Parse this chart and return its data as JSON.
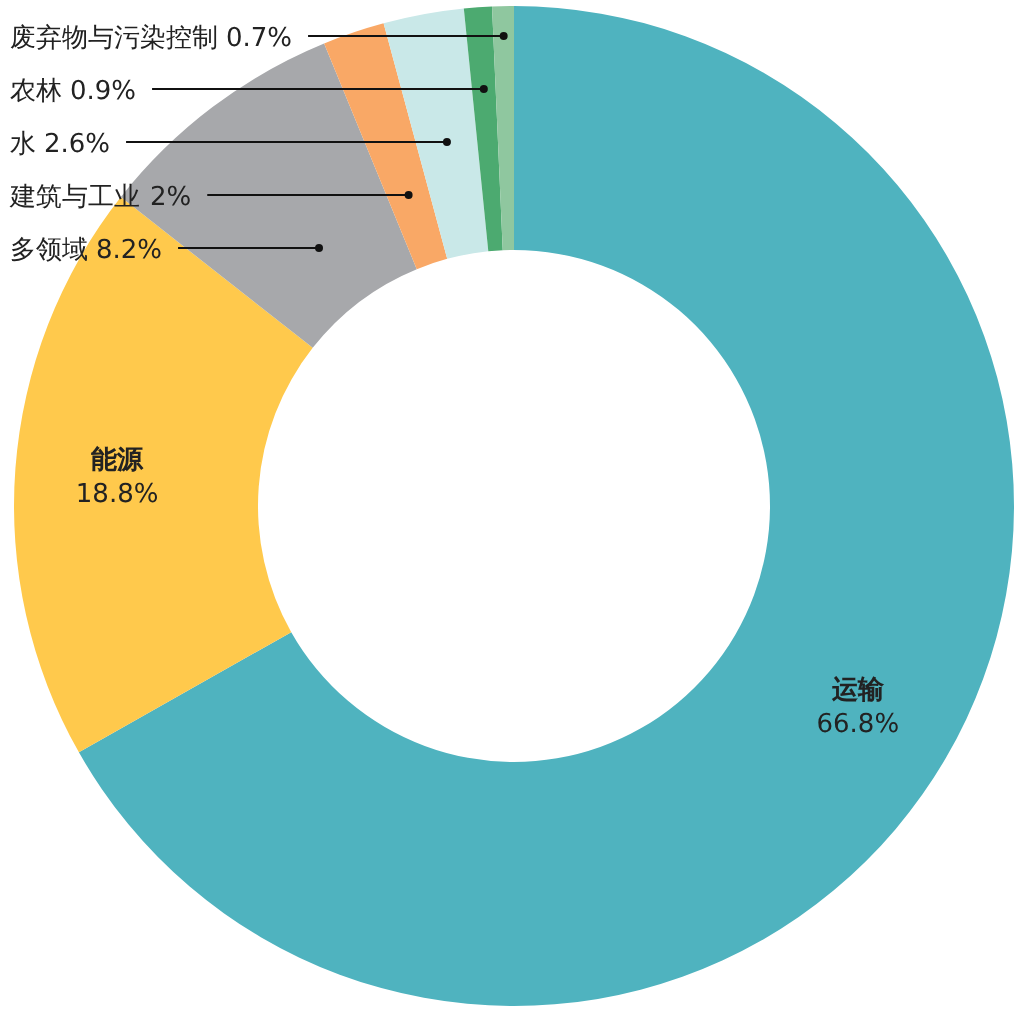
{
  "chart_data": {
    "type": "donut",
    "categories": [
      "运输",
      "能源",
      "多领域",
      "建筑与工业",
      "水",
      "农林",
      "废弃物与污染控制"
    ],
    "values": [
      66.8,
      18.8,
      8.2,
      2,
      2.6,
      0.9,
      0.7
    ],
    "colors": [
      "#4fb3bf",
      "#ffc94c",
      "#a7a8ab",
      "#f9a866",
      "#c9e8e8",
      "#4caa70",
      "#8fc79f"
    ],
    "value_labels": [
      "66.8%",
      "18.8%",
      "8.2%",
      "2%",
      "2.6%",
      "0.9%",
      "0.7%"
    ]
  }
}
